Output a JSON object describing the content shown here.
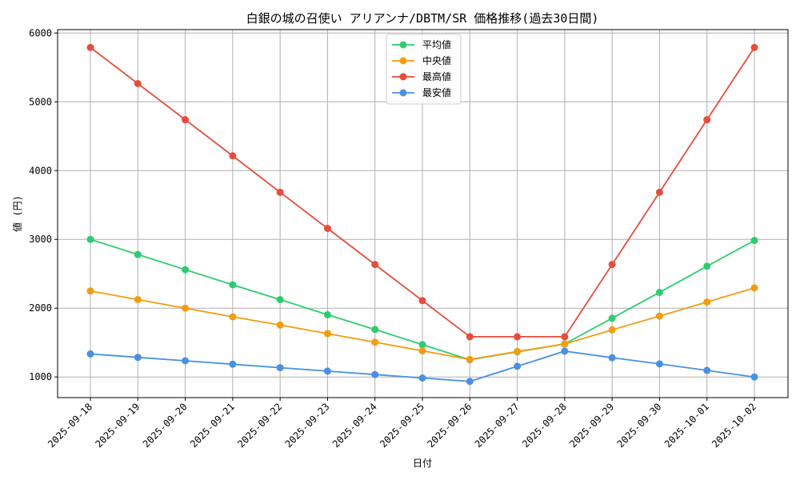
{
  "chart_data": {
    "type": "line",
    "title": "白銀の城の召使い アリアンナ/DBTM/SR 価格推移(過去30日間)",
    "xlabel": "日付",
    "ylabel": "値 (円)",
    "ylim": [
      700,
      6050
    ],
    "yticks": [
      1000,
      2000,
      3000,
      4000,
      5000,
      6000
    ],
    "grid": true,
    "legend_position": "top-center",
    "categories": [
      "2025-09-18",
      "2025-09-19",
      "2025-09-20",
      "2025-09-21",
      "2025-09-22",
      "2025-09-23",
      "2025-09-24",
      "2025-09-25",
      "2025-09-26",
      "2025-09-27",
      "2025-09-28",
      "2025-09-29",
      "2025-09-30",
      "2025-10-01",
      "2025-10-02"
    ],
    "series": [
      {
        "name": "平均値",
        "color": "#2ecc71",
        "values": [
          3000,
          2780,
          2560,
          2340,
          2125,
          1905,
          1690,
          1470,
          1250,
          1365,
          1480,
          1855,
          2230,
          2610,
          2985
        ]
      },
      {
        "name": "中央値",
        "color": "#f39c12",
        "values": [
          2250,
          2125,
          2000,
          1875,
          1755,
          1630,
          1505,
          1380,
          1255,
          1370,
          1480,
          1685,
          1885,
          2090,
          2295
        ]
      },
      {
        "name": "最高値",
        "color": "#e74c3c",
        "values": [
          5790,
          5265,
          4740,
          4215,
          3685,
          3160,
          2635,
          2110,
          1585,
          1585,
          1585,
          2635,
          3685,
          4740,
          5790
        ]
      },
      {
        "name": "最安値",
        "color": "#4a90e2",
        "values": [
          1335,
          1285,
          1235,
          1185,
          1135,
          1085,
          1035,
          985,
          935,
          1155,
          1375,
          1280,
          1190,
          1095,
          1000
        ]
      }
    ]
  }
}
